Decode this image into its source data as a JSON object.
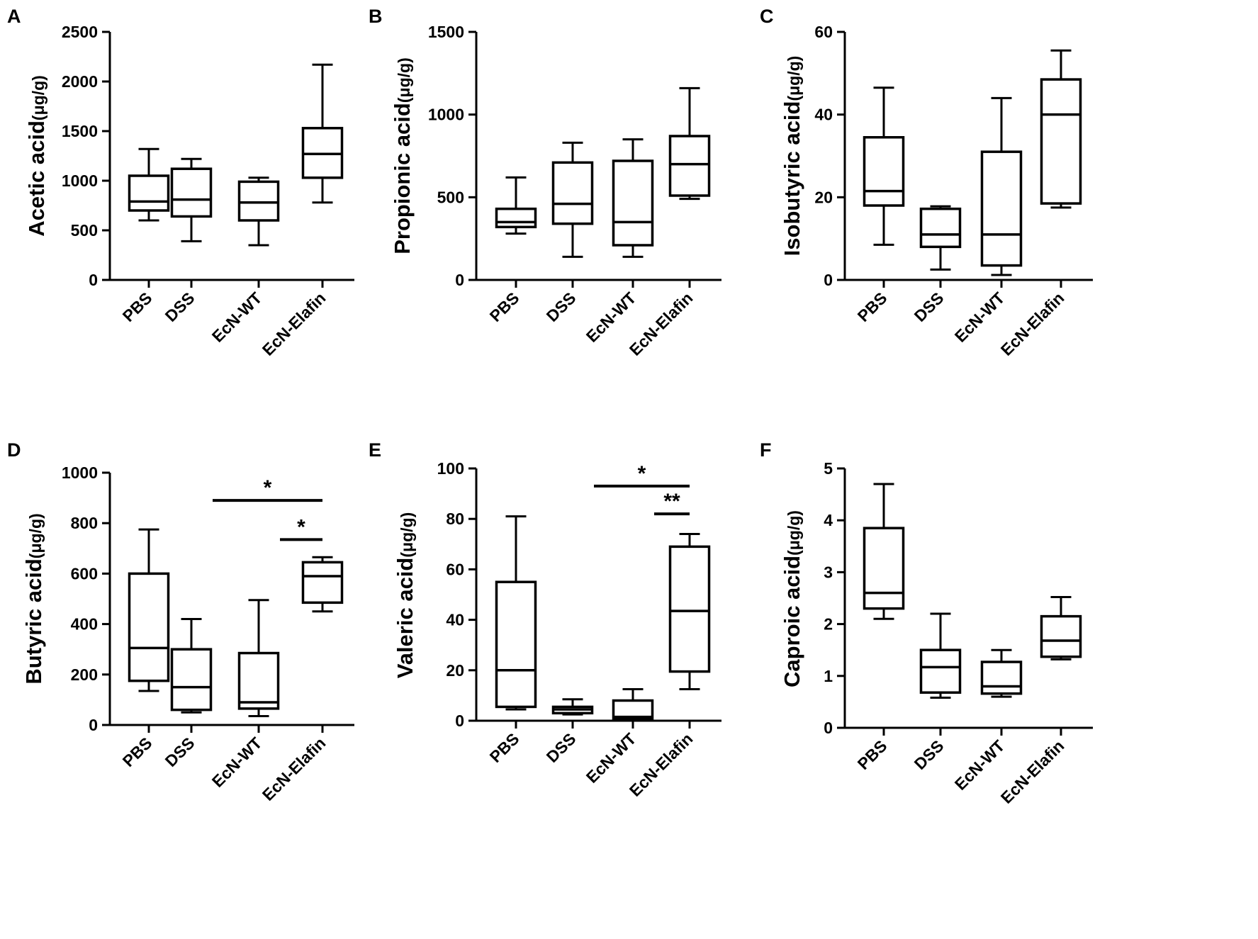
{
  "chart_data": [
    {
      "type": "box",
      "panel": "A",
      "ylabel_main": "Acetic acid",
      "ylabel_unit": "(μg/g)",
      "ylim": [
        0,
        2500
      ],
      "yticks": [
        0,
        500,
        1000,
        1500,
        2000,
        2500
      ],
      "ytick_labels": [
        "0",
        "500",
        "1000",
        "1500",
        "2000",
        "2500"
      ],
      "categories": [
        "PBS",
        "DSS",
        "EcN-WT",
        "EcN-Elafin"
      ],
      "boxes": [
        {
          "min": 600,
          "q1": 700,
          "median": 790,
          "q3": 1050,
          "max": 1320
        },
        {
          "min": 390,
          "q1": 640,
          "median": 810,
          "q3": 1120,
          "max": 1220
        },
        {
          "min": 350,
          "q1": 600,
          "median": 780,
          "q3": 990,
          "max": 1030
        },
        {
          "min": 780,
          "q1": 1030,
          "median": 1270,
          "q3": 1530,
          "max": 2170
        }
      ],
      "significance": []
    },
    {
      "type": "box",
      "panel": "B",
      "ylabel_main": "Propionic acid",
      "ylabel_unit": "(μg/g)",
      "ylim": [
        0,
        1500
      ],
      "yticks": [
        0,
        500,
        1000,
        1500
      ],
      "ytick_labels": [
        "0",
        "500",
        "1000",
        "1500"
      ],
      "categories": [
        "PBS",
        "DSS",
        "EcN-WT",
        "EcN-Elafin"
      ],
      "boxes": [
        {
          "min": 280,
          "q1": 320,
          "median": 350,
          "q3": 430,
          "max": 620
        },
        {
          "min": 140,
          "q1": 340,
          "median": 460,
          "q3": 710,
          "max": 830
        },
        {
          "min": 140,
          "q1": 210,
          "median": 350,
          "q3": 720,
          "max": 850
        },
        {
          "min": 490,
          "q1": 510,
          "median": 700,
          "q3": 870,
          "max": 1160
        }
      ],
      "significance": []
    },
    {
      "type": "box",
      "panel": "C",
      "ylabel_main": "Isobutyric acid",
      "ylabel_unit": "(μg/g)",
      "ylim": [
        0,
        60
      ],
      "yticks": [
        0,
        20,
        40,
        60
      ],
      "ytick_labels": [
        "0",
        "20",
        "40",
        "60"
      ],
      "categories": [
        "PBS",
        "DSS",
        "EcN-WT",
        "EcN-Elafin"
      ],
      "boxes": [
        {
          "min": 8.5,
          "q1": 18,
          "median": 21.5,
          "q3": 34.5,
          "max": 46.5
        },
        {
          "min": 2.5,
          "q1": 8,
          "median": 11,
          "q3": 17.2,
          "max": 17.8
        },
        {
          "min": 1.2,
          "q1": 3.5,
          "median": 11,
          "q3": 31,
          "max": 44
        },
        {
          "min": 17.5,
          "q1": 18.5,
          "median": 40,
          "q3": 48.5,
          "max": 55.5
        }
      ],
      "significance": []
    },
    {
      "type": "box",
      "panel": "D",
      "ylabel_main": "Butyric acid",
      "ylabel_unit": "(μg/g)",
      "ylim": [
        0,
        1000
      ],
      "yticks": [
        0,
        200,
        400,
        600,
        800,
        1000
      ],
      "ytick_labels": [
        "0",
        "200",
        "400",
        "600",
        "800",
        "1000"
      ],
      "categories": [
        "PBS",
        "DSS",
        "EcN-WT",
        "EcN-Elafin"
      ],
      "boxes": [
        {
          "min": 135,
          "q1": 175,
          "median": 305,
          "q3": 600,
          "max": 775
        },
        {
          "min": 50,
          "q1": 60,
          "median": 150,
          "q3": 300,
          "max": 420
        },
        {
          "min": 35,
          "q1": 65,
          "median": 90,
          "q3": 285,
          "max": 495
        },
        {
          "min": 450,
          "q1": 485,
          "median": 590,
          "q3": 645,
          "max": 665
        }
      ],
      "significance": [
        {
          "from": 1,
          "to": 3,
          "y": 890,
          "label": "*"
        },
        {
          "from": 2,
          "to": 3,
          "y": 735,
          "label": "*"
        }
      ]
    },
    {
      "type": "box",
      "panel": "E",
      "ylabel_main": "Valeric acid",
      "ylabel_unit": "(μg/g)",
      "ylim": [
        0,
        100
      ],
      "yticks": [
        0,
        20,
        40,
        60,
        80,
        100
      ],
      "ytick_labels": [
        "0",
        "20",
        "40",
        "60",
        "80",
        "100"
      ],
      "categories": [
        "PBS",
        "DSS",
        "EcN-WT",
        "EcN-Elafin"
      ],
      "boxes": [
        {
          "min": 4.5,
          "q1": 5.5,
          "median": 20,
          "q3": 55,
          "max": 81
        },
        {
          "min": 2.5,
          "q1": 3,
          "median": 4.5,
          "q3": 5.5,
          "max": 8.5
        },
        {
          "min": 0.3,
          "q1": 0.8,
          "median": 1.5,
          "q3": 8,
          "max": 12.5
        },
        {
          "min": 12.5,
          "q1": 19.5,
          "median": 43.5,
          "q3": 69,
          "max": 74
        }
      ],
      "significance": [
        {
          "from": 1,
          "to": 3,
          "y": 93,
          "label": "*"
        },
        {
          "from": 2,
          "to": 3,
          "y": 82,
          "label": "**"
        }
      ]
    },
    {
      "type": "box",
      "panel": "F",
      "ylabel_main": "Caproic acid",
      "ylabel_unit": "(μg/g)",
      "ylim": [
        0,
        5
      ],
      "yticks": [
        0,
        1,
        2,
        3,
        4,
        5
      ],
      "ytick_labels": [
        "0",
        "1",
        "2",
        "3",
        "4",
        "5"
      ],
      "categories": [
        "PBS",
        "DSS",
        "EcN-WT",
        "EcN-Elafin"
      ],
      "boxes": [
        {
          "min": 2.1,
          "q1": 2.3,
          "median": 2.6,
          "q3": 3.85,
          "max": 4.7
        },
        {
          "min": 0.58,
          "q1": 0.68,
          "median": 1.17,
          "q3": 1.5,
          "max": 2.2
        },
        {
          "min": 0.6,
          "q1": 0.66,
          "median": 0.8,
          "q3": 1.27,
          "max": 1.5
        },
        {
          "min": 1.32,
          "q1": 1.37,
          "median": 1.68,
          "q3": 2.15,
          "max": 2.52
        }
      ],
      "significance": []
    }
  ]
}
